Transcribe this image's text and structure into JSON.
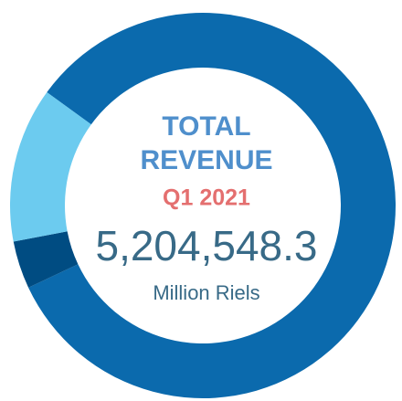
{
  "chart_data": {
    "type": "pie",
    "values": [
      83,
      4,
      13
    ],
    "colors": [
      "#0b6aad",
      "#004c82",
      "#6ccbef"
    ],
    "donut": true,
    "title": [
      "TOTAL",
      "REVENUE"
    ],
    "subtitle": "Q1 2021",
    "annotations": [
      "5,204,548.3",
      "Million Riels"
    ]
  }
}
